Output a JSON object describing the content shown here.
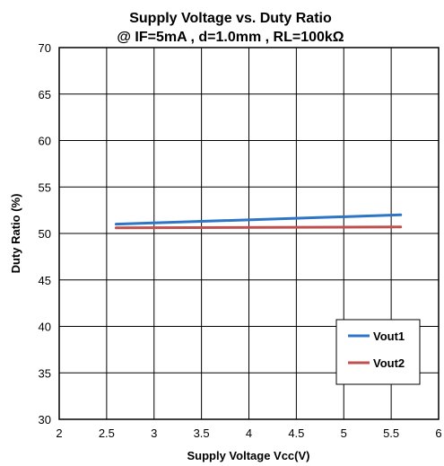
{
  "chart_data": {
    "type": "line",
    "title": "Supply Voltage vs. Duty Ratio",
    "subtitle": "@ IF=5mA , d=1.0mm , RL=100kΩ",
    "xlabel": "Supply Voltage Vcc(V)",
    "ylabel": "Duty Ratio (%)",
    "xlim": [
      2,
      6
    ],
    "ylim": [
      30,
      70
    ],
    "xticks": [
      2,
      2.5,
      3,
      3.5,
      4,
      4.5,
      5,
      5.5,
      6
    ],
    "yticks": [
      30,
      35,
      40,
      45,
      50,
      55,
      60,
      65,
      70
    ],
    "xtick_labels": [
      "2",
      "2.5",
      "3",
      "3.5",
      "4",
      "4.5",
      "5",
      "5.5",
      "6"
    ],
    "ytick_labels": [
      "30",
      "35",
      "40",
      "45",
      "50",
      "55",
      "60",
      "65",
      "70"
    ],
    "grid": "vertical-and-horizontal",
    "legend_position": "bottom-right",
    "series": [
      {
        "name": "Vout1",
        "color": "#2E75C6",
        "x": [
          2.6,
          5.6
        ],
        "y": [
          51.0,
          52.0
        ]
      },
      {
        "name": "Vout2",
        "color": "#C0504D",
        "x": [
          2.6,
          5.6
        ],
        "y": [
          50.6,
          50.7
        ]
      }
    ]
  }
}
